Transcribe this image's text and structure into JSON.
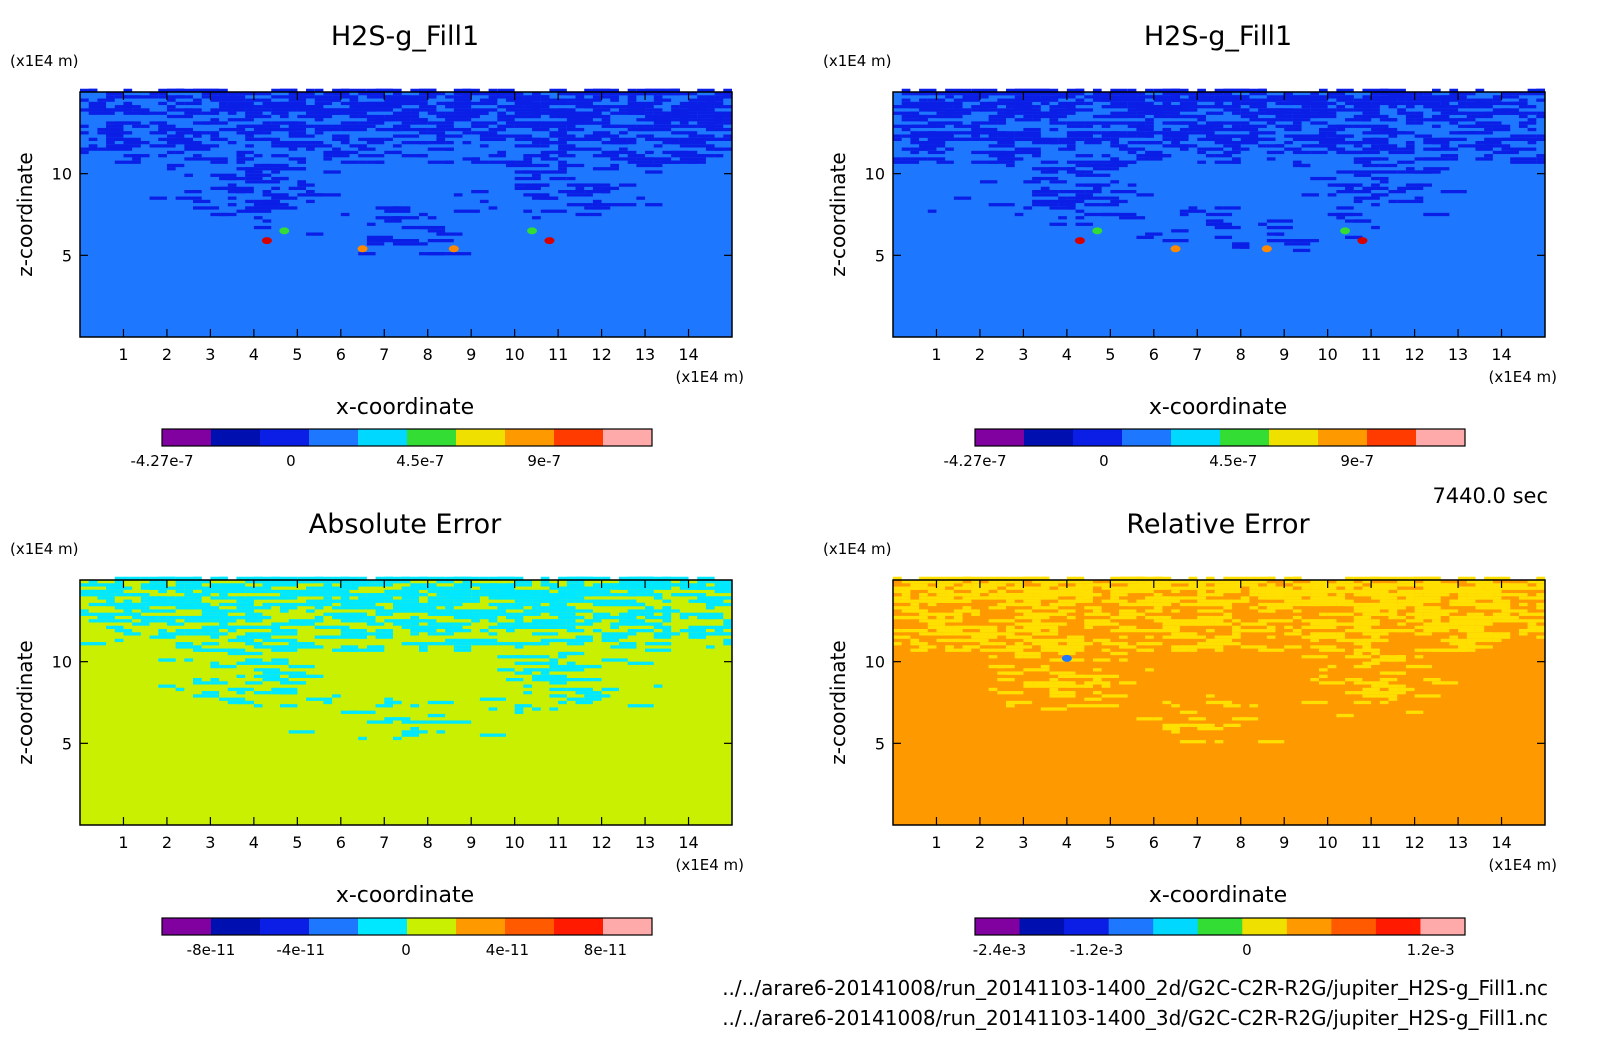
{
  "time_label": "7440.0 sec",
  "files": [
    "../../arare6-20141008/run_20141103-1400_2d/G2C-C2R-R2G/jupiter_H2S-g_Fill1.nc",
    "../../arare6-20141008/run_20141103-1400_3d/G2C-C2R-R2G/jupiter_H2S-g_Fill1.nc"
  ],
  "chart_data": [
    {
      "type": "heatmap",
      "title": "H2S-g_Fill1",
      "xlabel": "x-coordinate",
      "ylabel": "z-coordinate",
      "x_unit": "(x1E4 m)",
      "y_unit": "(x1E4 m)",
      "xlim": [
        0,
        15
      ],
      "ylim": [
        0,
        15
      ],
      "x_ticks": [
        "1",
        "2",
        "3",
        "4",
        "5",
        "6",
        "7",
        "8",
        "9",
        "10",
        "11",
        "12",
        "13",
        "14"
      ],
      "y_ticks": [
        "5",
        "10"
      ],
      "background_color": "#1e78ff",
      "pattern_color": "#0a1ee6",
      "hotspots": [
        [
          4.3,
          5.9,
          "#d70000"
        ],
        [
          4.7,
          6.5,
          "#33dd33"
        ],
        [
          6.5,
          5.4,
          "#ff8800"
        ],
        [
          8.6,
          5.4,
          "#ff8800"
        ],
        [
          10.4,
          6.5,
          "#33dd33"
        ],
        [
          10.8,
          5.9,
          "#d70000"
        ]
      ],
      "colorbar": {
        "colors": [
          "#8000a0",
          "#0010b0",
          "#0a1ee6",
          "#1e78ff",
          "#00d8ff",
          "#33dd33",
          "#f0e000",
          "#ff9900",
          "#ff3b00",
          "#ffaaaa"
        ],
        "ticks": [
          "-4.27e-7",
          "0",
          "4.5e-7",
          "9e-7"
        ]
      }
    },
    {
      "type": "heatmap",
      "title": "H2S-g_Fill1",
      "xlabel": "x-coordinate",
      "ylabel": "z-coordinate",
      "x_unit": "(x1E4 m)",
      "y_unit": "(x1E4 m)",
      "xlim": [
        0,
        15
      ],
      "ylim": [
        0,
        15
      ],
      "x_ticks": [
        "1",
        "2",
        "3",
        "4",
        "5",
        "6",
        "7",
        "8",
        "9",
        "10",
        "11",
        "12",
        "13",
        "14"
      ],
      "y_ticks": [
        "5",
        "10"
      ],
      "background_color": "#1e78ff",
      "pattern_color": "#0a1ee6",
      "hotspots": [
        [
          4.3,
          5.9,
          "#d70000"
        ],
        [
          4.7,
          6.5,
          "#33dd33"
        ],
        [
          6.5,
          5.4,
          "#ff8800"
        ],
        [
          8.6,
          5.4,
          "#ff8800"
        ],
        [
          10.4,
          6.5,
          "#33dd33"
        ],
        [
          10.8,
          5.9,
          "#d70000"
        ]
      ],
      "colorbar": {
        "colors": [
          "#8000a0",
          "#0010b0",
          "#0a1ee6",
          "#1e78ff",
          "#00d8ff",
          "#33dd33",
          "#f0e000",
          "#ff9900",
          "#ff3b00",
          "#ffaaaa"
        ],
        "ticks": [
          "-4.27e-7",
          "0",
          "4.5e-7",
          "9e-7"
        ]
      }
    },
    {
      "type": "heatmap",
      "title": "Absolute Error",
      "xlabel": "x-coordinate",
      "ylabel": "z-coordinate",
      "x_unit": "(x1E4 m)",
      "y_unit": "(x1E4 m)",
      "xlim": [
        0,
        15
      ],
      "ylim": [
        0,
        15
      ],
      "x_ticks": [
        "1",
        "2",
        "3",
        "4",
        "5",
        "6",
        "7",
        "8",
        "9",
        "10",
        "11",
        "12",
        "13",
        "14"
      ],
      "y_ticks": [
        "5",
        "10"
      ],
      "background_color": "#c8f000",
      "pattern_color": "#00e8ff",
      "hotspots": [],
      "colorbar": {
        "colors": [
          "#8000a0",
          "#0010b0",
          "#0a1ee6",
          "#1e78ff",
          "#00e8ff",
          "#c8f000",
          "#ff9900",
          "#ff5a00",
          "#ff1a00",
          "#ffaaaa"
        ],
        "ticks": [
          "-8e-11",
          "-4e-11",
          "0",
          "4e-11",
          "8e-11"
        ]
      }
    },
    {
      "type": "heatmap",
      "title": "Relative Error",
      "xlabel": "x-coordinate",
      "ylabel": "z-coordinate",
      "x_unit": "(x1E4 m)",
      "y_unit": "(x1E4 m)",
      "xlim": [
        0,
        15
      ],
      "ylim": [
        0,
        15
      ],
      "x_ticks": [
        "1",
        "2",
        "3",
        "4",
        "5",
        "6",
        "7",
        "8",
        "9",
        "10",
        "11",
        "12",
        "13",
        "14"
      ],
      "y_ticks": [
        "5",
        "10"
      ],
      "background_color": "#ff9900",
      "pattern_color": "#ffe000",
      "hotspots": [
        [
          4.0,
          10.2,
          "#1e78ff"
        ]
      ],
      "colorbar": {
        "colors": [
          "#8000a0",
          "#0010b0",
          "#0a1ee6",
          "#1e78ff",
          "#00d8ff",
          "#33dd33",
          "#f0e000",
          "#ff9900",
          "#ff5a00",
          "#ff1a00",
          "#ffaaaa"
        ],
        "ticks": [
          "-2.4e-3",
          "-1.2e-3",
          "0",
          "1.2e-3"
        ]
      }
    }
  ]
}
